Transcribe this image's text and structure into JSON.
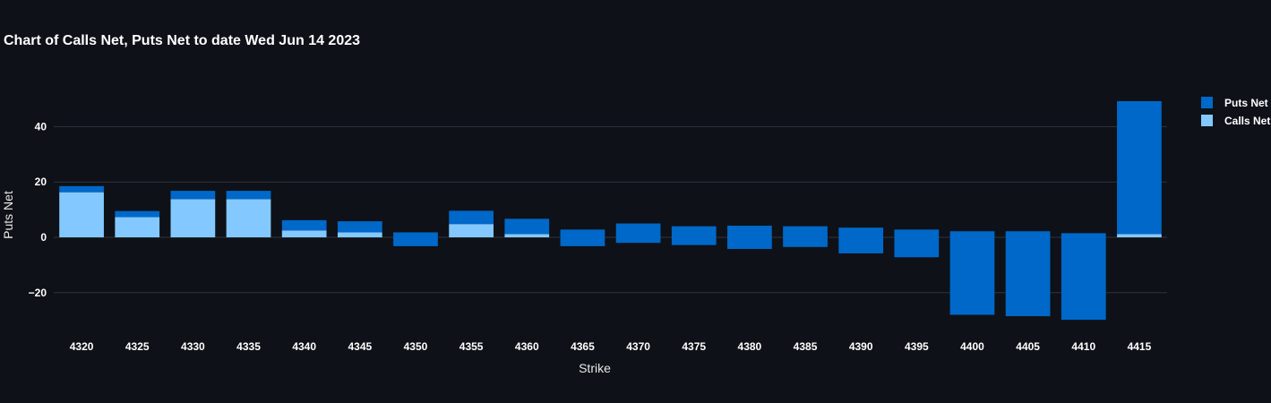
{
  "chart_data": {
    "type": "bar",
    "barmode": "relative",
    "title": "Chart of Calls Net, Puts Net to date Wed Jun 14 2023",
    "xlabel": "Strike",
    "ylabel": "Puts Net",
    "categories": [
      "4320",
      "4325",
      "4330",
      "4335",
      "4340",
      "4345",
      "4350",
      "4355",
      "4360",
      "4365",
      "4370",
      "4375",
      "4380",
      "4385",
      "4390",
      "4395",
      "4400",
      "4405",
      "4410",
      "4415"
    ],
    "series": [
      {
        "name": "Calls Net",
        "color": "#83c9ff",
        "values": [
          16.3,
          7.3,
          13.8,
          13.8,
          2.5,
          1.8,
          0,
          4.8,
          1.2,
          0,
          0,
          0,
          0,
          0,
          0,
          0,
          0,
          0,
          0,
          1.2
        ]
      },
      {
        "name": "Puts Net",
        "color": "#0068c9",
        "values": [
          2.2,
          2.2,
          3.0,
          3.0,
          3.7,
          4.0,
          -3.2,
          4.8,
          5.5,
          -3.2,
          -2.0,
          -2.8,
          -4.2,
          -3.5,
          -5.8,
          -7.2,
          -28.0,
          -28.5,
          -29.8,
          48.0
        ]
      }
    ],
    "split_bars": [
      {
        "index": 6,
        "pos": 1.8
      },
      {
        "index": 9,
        "pos": 2.8
      },
      {
        "index": 10,
        "pos": 5.0
      },
      {
        "index": 11,
        "pos": 4.0
      },
      {
        "index": 12,
        "pos": 4.2
      },
      {
        "index": 13,
        "pos": 4.0
      },
      {
        "index": 14,
        "pos": 3.5
      },
      {
        "index": 15,
        "pos": 2.8
      },
      {
        "index": 16,
        "pos": 2.2
      },
      {
        "index": 17,
        "pos": 2.2
      },
      {
        "index": 18,
        "pos": 1.5
      }
    ],
    "y_ticks": [
      -20,
      0,
      20,
      40
    ],
    "y_tick_labels": [
      "−20",
      "0",
      "20",
      "40"
    ],
    "ylim": [
      -35,
      53
    ],
    "grid": true,
    "legend": {
      "placement": "top-right",
      "items": [
        "Puts Net",
        "Calls Net"
      ]
    }
  }
}
